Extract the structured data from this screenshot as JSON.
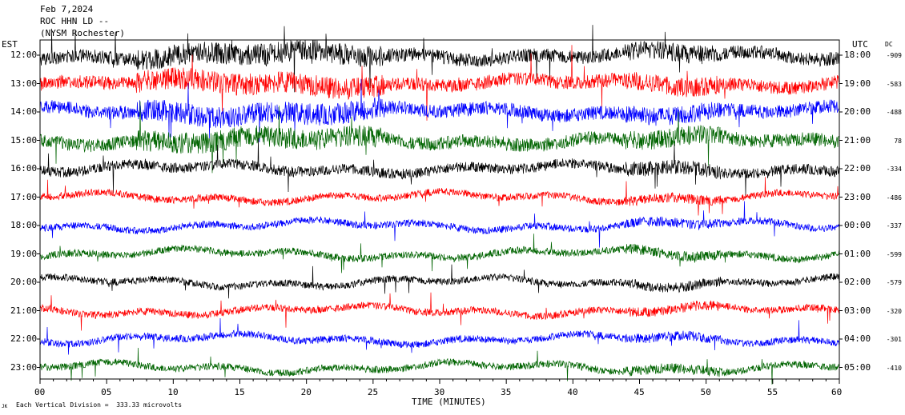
{
  "header": {
    "date": "Feb 7,2024",
    "station": "ROC HHN LD --",
    "location": "(NYSM Rochester)"
  },
  "left_axis_label": "EST",
  "right_axis_label": "UTC",
  "dc_label": "DC",
  "footer": {
    "scale_note": "Each Vertical Division =  333.33 microvolts",
    "corner_mark": "JK"
  },
  "chart_data": {
    "type": "line",
    "title": "",
    "xlabel": "TIME (MINUTES)",
    "ylabel": "",
    "xlim": [
      0,
      60
    ],
    "x_ticks": [
      0,
      5,
      10,
      15,
      20,
      25,
      30,
      35,
      40,
      45,
      50,
      55,
      60
    ],
    "x_tick_labels": [
      "00",
      "05",
      "10",
      "15",
      "20",
      "25",
      "30",
      "35",
      "40",
      "45",
      "50",
      "55",
      "60"
    ],
    "grid": false,
    "trace_colors": [
      "#000000",
      "#ff0000",
      "#0000ff",
      "#006400"
    ],
    "rows": [
      {
        "est": "12:00",
        "utc": "18:00",
        "dc": "-909",
        "color": "#000000"
      },
      {
        "est": "13:00",
        "utc": "19:00",
        "dc": "-583",
        "color": "#ff0000"
      },
      {
        "est": "14:00",
        "utc": "20:00",
        "dc": "-488",
        "color": "#0000ff"
      },
      {
        "est": "15:00",
        "utc": "21:00",
        "dc": "78",
        "color": "#006400"
      },
      {
        "est": "16:00",
        "utc": "22:00",
        "dc": "-334",
        "color": "#000000"
      },
      {
        "est": "17:00",
        "utc": "23:00",
        "dc": "-486",
        "color": "#ff0000"
      },
      {
        "est": "18:00",
        "utc": "00:00",
        "dc": "-337",
        "color": "#0000ff"
      },
      {
        "est": "19:00",
        "utc": "01:00",
        "dc": "-599",
        "color": "#006400"
      },
      {
        "est": "20:00",
        "utc": "02:00",
        "dc": "-579",
        "color": "#000000"
      },
      {
        "est": "21:00",
        "utc": "03:00",
        "dc": "-320",
        "color": "#ff0000"
      },
      {
        "est": "22:00",
        "utc": "04:00",
        "dc": "-301",
        "color": "#0000ff"
      },
      {
        "est": "23:00",
        "utc": "05:00",
        "dc": "-410",
        "color": "#006400"
      }
    ]
  }
}
